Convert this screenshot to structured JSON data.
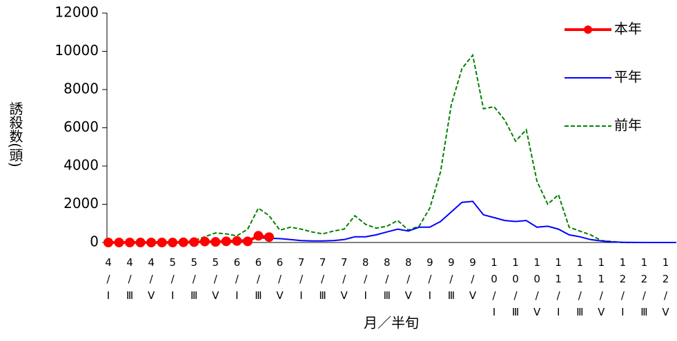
{
  "chart_data": {
    "type": "line",
    "ylabel": "誘殺数(頭)",
    "xlabel": "月／半旬",
    "categories": [
      "4/Ⅰ",
      null,
      "4/Ⅲ",
      null,
      "4/Ⅴ",
      null,
      "5/Ⅰ",
      null,
      "5/Ⅲ",
      null,
      "5/Ⅴ",
      null,
      "6/Ⅰ",
      null,
      "6/Ⅲ",
      null,
      "6/Ⅴ",
      null,
      "7/Ⅰ",
      null,
      "7/Ⅲ",
      null,
      "7/Ⅴ",
      null,
      "8/Ⅰ",
      null,
      "8/Ⅲ",
      null,
      "8/Ⅴ",
      null,
      "9/Ⅰ",
      null,
      "9/Ⅲ",
      null,
      "9/Ⅴ",
      null,
      "10/Ⅰ",
      null,
      "10/Ⅲ",
      null,
      "10/Ⅴ",
      null,
      "11/Ⅰ",
      null,
      "11/Ⅲ",
      null,
      "11/Ⅴ",
      null,
      "12/Ⅰ",
      null,
      "12/Ⅲ",
      null,
      "12/Ⅴ",
      null
    ],
    "series": [
      {
        "name": "本年",
        "color": "#ff0000",
        "style": "marker",
        "values": [
          0,
          0,
          0,
          0,
          0,
          0,
          0,
          10,
          20,
          50,
          30,
          60,
          80,
          60,
          350,
          280,
          null,
          null,
          null,
          null,
          null,
          null,
          null,
          null,
          null,
          null,
          null,
          null,
          null,
          null,
          null,
          null,
          null,
          null,
          null,
          null,
          null,
          null,
          null,
          null,
          null,
          null,
          null,
          null,
          null,
          null,
          null,
          null,
          null,
          null,
          null,
          null,
          null,
          null
        ]
      },
      {
        "name": "平年",
        "color": "#0000ff",
        "style": "solid",
        "values": [
          0,
          0,
          0,
          5,
          10,
          15,
          20,
          30,
          40,
          50,
          60,
          80,
          100,
          150,
          250,
          220,
          200,
          150,
          100,
          80,
          80,
          100,
          150,
          300,
          300,
          400,
          550,
          700,
          600,
          800,
          800,
          1100,
          1600,
          2100,
          2150,
          1450,
          1300,
          1150,
          1100,
          1150,
          800,
          850,
          700,
          400,
          300,
          150,
          80,
          30,
          10,
          5,
          0,
          0,
          0,
          0
        ]
      },
      {
        "name": "前年",
        "color": "#008000",
        "style": "dashed",
        "values": [
          0,
          0,
          0,
          0,
          0,
          0,
          20,
          50,
          100,
          300,
          500,
          450,
          350,
          700,
          1800,
          1400,
          650,
          800,
          700,
          550,
          450,
          600,
          700,
          1400,
          950,
          750,
          850,
          1150,
          650,
          850,
          1800,
          3700,
          7200,
          9100,
          9800,
          7000,
          7100,
          6400,
          5300,
          5900,
          3200,
          2000,
          2500,
          800,
          600,
          400,
          100,
          50,
          0,
          0,
          0,
          0,
          0,
          0
        ]
      }
    ],
    "ylim": [
      0,
      12000
    ],
    "yticks": [
      0,
      2000,
      4000,
      6000,
      8000,
      10000,
      12000
    ],
    "grid": false,
    "legend": "upper right"
  }
}
